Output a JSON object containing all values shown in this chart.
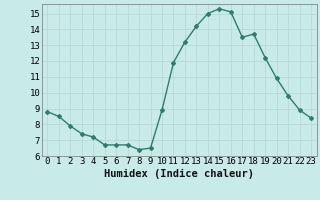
{
  "x": [
    0,
    1,
    2,
    3,
    4,
    5,
    6,
    7,
    8,
    9,
    10,
    11,
    12,
    13,
    14,
    15,
    16,
    17,
    18,
    19,
    20,
    21,
    22,
    23
  ],
  "y": [
    8.8,
    8.5,
    7.9,
    7.4,
    7.2,
    6.7,
    6.7,
    6.7,
    6.4,
    6.5,
    8.9,
    11.9,
    13.2,
    14.2,
    15.0,
    15.3,
    15.1,
    13.5,
    13.7,
    12.2,
    10.9,
    9.8,
    8.9,
    8.4
  ],
  "xlabel": "Humidex (Indice chaleur)",
  "ylim": [
    6,
    15.6
  ],
  "xlim": [
    -0.5,
    23.5
  ],
  "line_color": "#2e7d6e",
  "bg_color": "#c8ebe8",
  "grid_color": "#b8d8d4",
  "xlabel_fontsize": 7.5,
  "tick_fontsize": 6.5,
  "yticks": [
    6,
    7,
    8,
    9,
    10,
    11,
    12,
    13,
    14,
    15
  ],
  "xticks": [
    0,
    1,
    2,
    3,
    4,
    5,
    6,
    7,
    8,
    9,
    10,
    11,
    12,
    13,
    14,
    15,
    16,
    17,
    18,
    19,
    20,
    21,
    22,
    23
  ]
}
